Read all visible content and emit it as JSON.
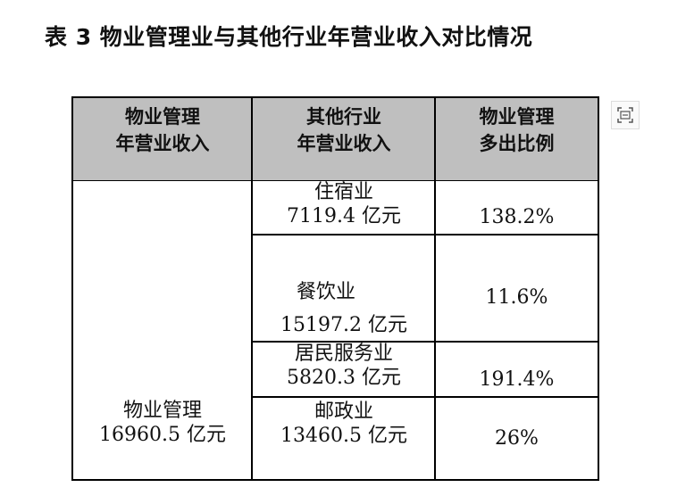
{
  "title": "表 3 物业管理业与其他行业年营业收入对比情况",
  "table": {
    "header": [
      [
        "物业管理",
        "年营业收入"
      ],
      [
        "其他行业",
        "年营业收入"
      ],
      [
        "物业管理",
        "多出比例"
      ]
    ],
    "property": {
      "name": "物业管理",
      "revenue": "16960.5 亿元"
    },
    "rows": [
      {
        "industry": "住宿业",
        "revenue": "7119.4 亿元",
        "ratio": "138.2%"
      },
      {
        "industry": "餐饮业",
        "revenue": "15197.2 亿元",
        "ratio": "11.6%"
      },
      {
        "industry": "居民服务业",
        "revenue": "5820.3 亿元",
        "ratio": "191.4%"
      },
      {
        "industry": "邮政业",
        "revenue": "13460.5 亿元",
        "ratio": "26%"
      }
    ]
  }
}
